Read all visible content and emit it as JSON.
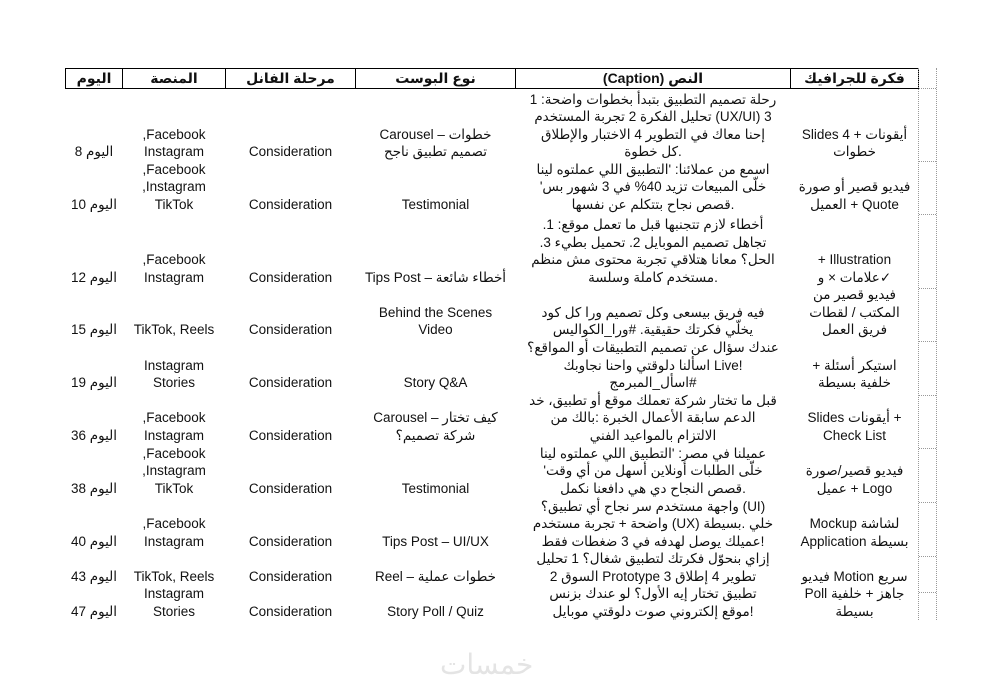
{
  "headers": [
    "فكرة للجرافيك",
    "النص (Caption)",
    "نوع البوست",
    "مرحلة الفانل",
    "المنصة",
    "اليوم"
  ],
  "rows": [
    {
      "graphic": "أيقونات + Slides 4\nخطوات",
      "caption": "رحلة تصميم التطبيق بتبدأ بخطوات واضحة: 1\n3 (UX/UI) تحليل الفكرة 2 تجربة المستخدم\nإحنا معاك في التطوير 4 الاختبار والإطلاق\n.كل خطوة",
      "type": "خطوات – Carousel\nتصميم تطبيق ناجح",
      "funnel": "Consideration",
      "platform": "Facebook,\nInstagram",
      "day": "اليوم 8"
    },
    {
      "graphic": "فيديو قصير أو صورة\nQuote + العميل",
      "caption": "اسمع من عملائنا: 'التطبيق اللي عملتوه لينا\nخلّى المبيعات تزيد 40% في 3 شهور بس'\n.قصص نجاح بتتكلم عن نفسها",
      "type": "Testimonial",
      "funnel": "Consideration",
      "platform": "Facebook,\nInstagram,\nTikTok",
      "day": "اليوم 10"
    },
    {
      "graphic": "Illustration +\n✓علامات × و",
      "caption": "أخطاء لازم تتجنبها قبل ما تعمل موقع: 1.\nتجاهل تصميم الموبايل 2. تحميل بطيء 3.\nالحل؟ معانا هتلاقي تجربة محتوى مش منظم\n.مستخدم كاملة وسلسة",
      "type": "أخطاء شائعة – Tips Post",
      "funnel": "Consideration",
      "platform": "Facebook,\nInstagram",
      "day": "اليوم 12"
    },
    {
      "graphic": "فيديو قصير من\nالمكتب / لقطات\nفريق العمل",
      "caption": "فيه فريق بيسعى وكل تصميم ورا كل كود\nيخلّي فكرتك حقيقية. #ورا_الكواليس",
      "type": "Behind the Scenes\nVideo",
      "funnel": "Consideration",
      "platform": "TikTok, Reels",
      "day": "اليوم 15"
    },
    {
      "graphic": "استيكر أسئلة +\nخلفية بسيطة",
      "caption": "عندك سؤال عن تصميم التطبيقات أو المواقع؟\n!Live اسألنا دلوقتي واحنا نجاوبك\n#اسأل_المبرمج",
      "type": "Story Q&A",
      "funnel": "Consideration",
      "platform": "Instagram\nStories",
      "day": "اليوم 19"
    },
    {
      "graphic": "+ أيقونات Slides\nCheck List",
      "caption": "قبل ما تختار شركة تعملك موقع أو تطبيق، خد\nالدعم سابقة الأعمال الخبرة :بالك من\nالالتزام بالمواعيد الفني",
      "type": "كيف تختار – Carousel\nشركة تصميم؟",
      "funnel": "Consideration",
      "platform": "Facebook,\nInstagram",
      "day": "اليوم 36"
    },
    {
      "graphic": "فيديو قصير/صورة\nLogo + عميل",
      "caption": "عميلنا في مصر: 'التطبيق اللي عملتوه لينا\nخلّى الطلبات أونلاين أسهل من أي وقت'\n.قصص النجاح دي هي دافعنا نكمل",
      "type": "Testimonial",
      "funnel": "Consideration",
      "platform": "Facebook,\nInstagram,\nTikTok",
      "day": "اليوم 38"
    },
    {
      "graphic": "لشاشة Mockup\nبسيطة Application",
      "caption": "(UI) واجهة مستخدم سر نجاح أي تطبيق؟\nخلي .بسيطة (UX) واضحة + تجربة مستخدم\n!عميلك يوصل لهدفه في 3 ضغطات فقط",
      "type": "Tips Post – UI/UX",
      "funnel": "Consideration",
      "platform": "Facebook,\nInstagram",
      "day": "اليوم 40"
    },
    {
      "graphic": "سريع Motion فيديو",
      "caption": "إزاي بنحوّل فكرتك لتطبيق شغال؟ 1 تحليل\nتطوير 4 إطلاق 3 Prototype السوق 2",
      "type": "خطوات عملية – Reel",
      "funnel": "Consideration",
      "platform": "TikTok, Reels",
      "day": "اليوم 43"
    },
    {
      "graphic": "جاهز + خلفية Poll\nبسيطة",
      "caption": "تطبيق تختار إيه الأول؟ لو عندك بزنس\n!موقع إلكتروني صوت دلوقتي موبايل",
      "type": "Story Poll / Quiz",
      "funnel": "Consideration",
      "platform": "Instagram\nStories",
      "day": "اليوم 47"
    }
  ],
  "watermark": "خمسات"
}
